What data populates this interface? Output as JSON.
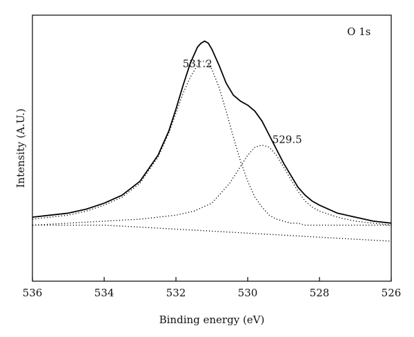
{
  "chart_data": {
    "type": "line",
    "xlabel": "Binding energy (eV)",
    "ylabel": "Intensity (A.U.)",
    "xlim": [
      536,
      526
    ],
    "x_reversed": true,
    "ylim": [
      -0.28,
      1.05
    ],
    "x_ticks": [
      "536",
      "534",
      "532",
      "530",
      "528",
      "526"
    ],
    "y_ticks": [],
    "grid": false,
    "legend": "none",
    "annotations": [
      {
        "text": "O 1s",
        "x": 526.9,
        "y": 0.95
      },
      {
        "text": "531.2",
        "x": 531.4,
        "y": 0.79
      },
      {
        "text": "529.5",
        "x": 528.9,
        "y": 0.41
      }
    ],
    "series": [
      {
        "style": "solid",
        "color": "#000000",
        "x": [
          536,
          535.5,
          535,
          534.5,
          534,
          533.5,
          533,
          532.5,
          532.2,
          532,
          531.8,
          531.6,
          531.4,
          531.3,
          531.2,
          531.1,
          531,
          530.8,
          530.6,
          530.4,
          530.2,
          530,
          529.8,
          529.6,
          529.4,
          529.2,
          529,
          528.8,
          528.6,
          528.4,
          528.2,
          528,
          527.5,
          527,
          526.5,
          526
        ],
        "y": [
          0.04,
          0.05,
          0.06,
          0.08,
          0.11,
          0.15,
          0.22,
          0.35,
          0.47,
          0.58,
          0.7,
          0.81,
          0.89,
          0.91,
          0.92,
          0.91,
          0.88,
          0.8,
          0.71,
          0.65,
          0.62,
          0.6,
          0.57,
          0.52,
          0.45,
          0.38,
          0.31,
          0.25,
          0.19,
          0.15,
          0.12,
          0.1,
          0.06,
          0.04,
          0.02,
          0.01
        ]
      },
      {
        "style": "dotted",
        "color": "#000000",
        "x": [
          536,
          535.5,
          535,
          534.5,
          534,
          533.5,
          533,
          532.5,
          532.2,
          532,
          531.8,
          531.6,
          531.4,
          531.3,
          531.2,
          531.1,
          531,
          530.8,
          530.6,
          530.4,
          530.2,
          530,
          529.8,
          529.6,
          529.4,
          529.2,
          529,
          528.8,
          528.6,
          528.4,
          528.2,
          528,
          527.5,
          527,
          526.5,
          526
        ],
        "y": [
          0.03,
          0.04,
          0.05,
          0.07,
          0.1,
          0.14,
          0.21,
          0.34,
          0.46,
          0.56,
          0.66,
          0.74,
          0.8,
          0.82,
          0.82,
          0.81,
          0.78,
          0.69,
          0.57,
          0.44,
          0.32,
          0.22,
          0.14,
          0.09,
          0.05,
          0.03,
          0.02,
          0.01,
          0.01,
          0.0,
          0.0,
          0.0,
          0.0,
          0.0,
          0.0,
          0.0
        ]
      },
      {
        "style": "dotted",
        "color": "#000000",
        "x": [
          536,
          535,
          534,
          533,
          532,
          531.5,
          531,
          530.5,
          530,
          529.8,
          529.6,
          529.4,
          529.2,
          529,
          528.8,
          528.6,
          528.4,
          528.2,
          528,
          527.5,
          527,
          526.5,
          526
        ],
        "y": [
          0.0,
          0.01,
          0.02,
          0.03,
          0.05,
          0.07,
          0.11,
          0.21,
          0.35,
          0.39,
          0.4,
          0.39,
          0.35,
          0.29,
          0.23,
          0.17,
          0.12,
          0.09,
          0.07,
          0.04,
          0.02,
          0.01,
          0.0
        ]
      },
      {
        "style": "dotted",
        "color": "#000000",
        "x": [
          536,
          535,
          534,
          533,
          532,
          531,
          530,
          529,
          528,
          527,
          526
        ],
        "y": [
          0.0,
          0.0,
          0.0,
          -0.01,
          -0.02,
          -0.03,
          -0.04,
          -0.05,
          -0.06,
          -0.07,
          -0.08
        ]
      }
    ]
  }
}
